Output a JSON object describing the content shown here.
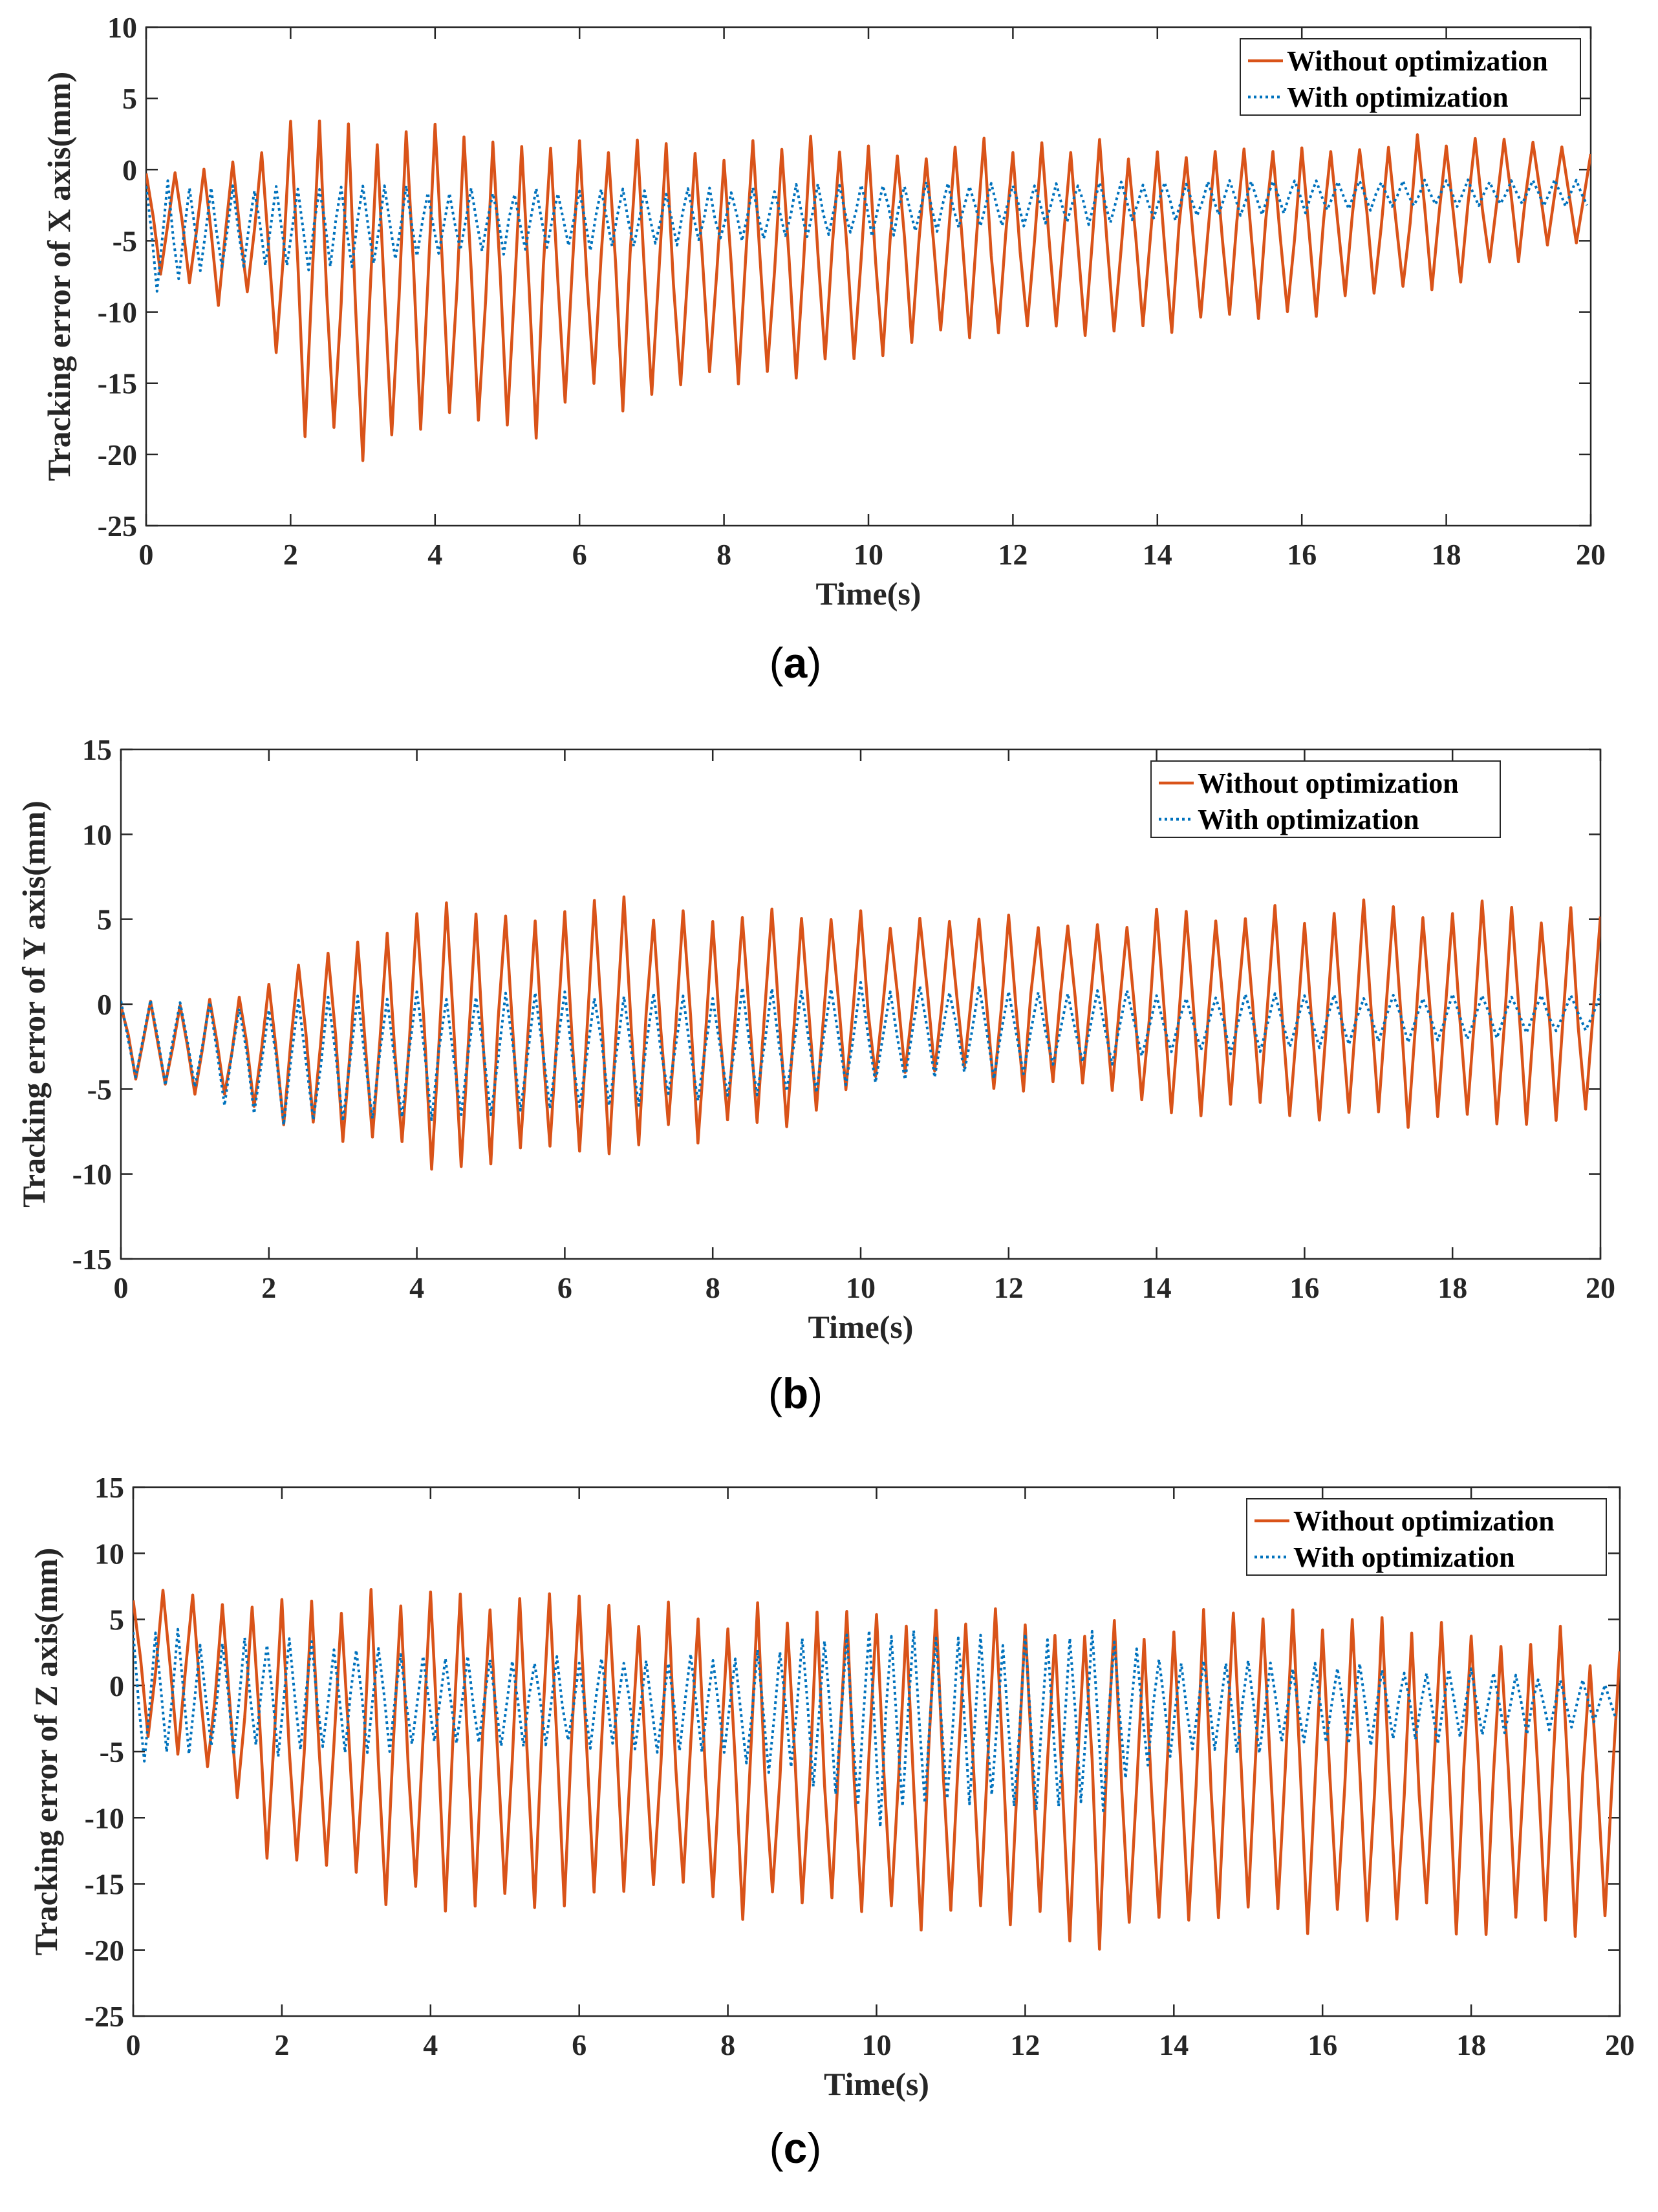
{
  "colors": {
    "without": "#D95319",
    "with": "#0072BD",
    "axis": "#262626"
  },
  "chart_data": [
    {
      "type": "line",
      "caption_letter": "a",
      "ylabel": "Tracking error of X axis(mm)",
      "xlabel": "Time(s)",
      "xlim": [
        0,
        20
      ],
      "ylim": [
        -25,
        10
      ],
      "xticks": [
        0,
        2,
        4,
        6,
        8,
        10,
        12,
        14,
        16,
        18,
        20
      ],
      "yticks": [
        10,
        5,
        0,
        -5,
        -10,
        -15,
        -20,
        -25
      ],
      "legend": {
        "position": "top-right",
        "entries": [
          "Without optimization",
          "With optimization"
        ]
      },
      "grid": false,
      "series": [
        {
          "name": "Without optimization",
          "style": "solid",
          "period": 0.4,
          "sample_dt": 0.1,
          "envelope": {
            "t": [
              0,
              1,
              1.5,
              2,
              3,
              4,
              5,
              6,
              7,
              8,
              9,
              10,
              11,
              12,
              13,
              14,
              15,
              16,
              17,
              18,
              19,
              20
            ],
            "max": [
              0,
              0,
              1,
              2.5,
              2,
              2.5,
              2,
              2,
              2,
              1.5,
              1.5,
              1.5,
              1.5,
              1.5,
              1.5,
              1.5,
              1.5,
              1.5,
              2,
              2,
              2,
              1
            ],
            "min": [
              -7,
              -9,
              -9,
              -17,
              -20,
              -17,
              -19,
              -16,
              -16,
              -15,
              -14,
              -13,
              -12,
              -12,
              -11,
              -11,
              -10,
              -10,
              -9,
              -8,
              -6,
              -5
            ]
          }
        },
        {
          "name": "With optimization",
          "style": "dotted",
          "period": 0.3,
          "sample_dt": 0.075,
          "envelope": {
            "t": [
              0,
              1,
              2,
              4,
              6,
              8,
              10,
              12,
              14,
              16,
              18,
              20
            ],
            "max": [
              -1,
              -1.5,
              -1,
              -1.5,
              -1.5,
              -1.5,
              -1,
              -1,
              -1,
              -0.8,
              -0.8,
              -0.8
            ],
            "min": [
              -8.5,
              -7,
              -7,
              -6,
              -5.5,
              -5,
              -4.5,
              -4,
              -3.5,
              -3,
              -2.5,
              -2.5
            ]
          }
        }
      ]
    },
    {
      "type": "line",
      "caption_letter": "b",
      "ylabel": "Tracking error of Y axis(mm)",
      "xlabel": "Time(s)",
      "xlim": [
        0,
        20
      ],
      "ylim": [
        -15,
        15
      ],
      "xticks": [
        0,
        2,
        4,
        6,
        8,
        10,
        12,
        14,
        16,
        18,
        20
      ],
      "yticks": [
        15,
        10,
        5,
        0,
        -5,
        -10,
        -15
      ],
      "legend": {
        "position": "top-right",
        "entries": [
          "Without optimization",
          "With optimization"
        ]
      },
      "grid": false,
      "series": [
        {
          "name": "Without optimization",
          "style": "solid",
          "period": 0.4,
          "sample_dt": 0.1,
          "envelope": {
            "t": [
              0,
              1,
              1.8,
              2.5,
              3,
              4,
              5,
              6,
              7,
              8,
              9,
              10,
              11,
              12,
              13,
              14,
              15,
              16,
              17,
              18,
              19,
              20
            ],
            "max": [
              0,
              0,
              1,
              3,
              4,
              5,
              6,
              5.5,
              5.5,
              5,
              5,
              5,
              5,
              5,
              5,
              5,
              5.5,
              5.5,
              5.5,
              5.5,
              5.5,
              5
            ],
            "min": [
              -4,
              -5,
              -6,
              -7,
              -8,
              -9,
              -9.5,
              -9,
              -8,
              -7.5,
              -6.5,
              -5,
              -4,
              -4.5,
              -5,
              -6,
              -6.5,
              -6.5,
              -6.5,
              -7,
              -7,
              -6.5
            ]
          }
        },
        {
          "name": "With optimization",
          "style": "dotted",
          "period": 0.4,
          "sample_dt": 0.1,
          "envelope": {
            "t": [
              0,
              1,
              2,
              4,
              6,
              8,
              10,
              12,
              14,
              16,
              18,
              20
            ],
            "max": [
              0,
              0,
              0,
              0.5,
              0.5,
              0.5,
              1,
              1,
              0.5,
              0.5,
              0.5,
              0.5
            ],
            "min": [
              -4,
              -5,
              -7,
              -6.5,
              -6,
              -5.5,
              -5,
              -4,
              -3,
              -2.5,
              -2,
              -1.5
            ]
          }
        }
      ]
    },
    {
      "type": "line",
      "caption_letter": "c",
      "ylabel": "Tracking error of Z axis(mm)",
      "xlabel": "Time(s)",
      "xlim": [
        0,
        20
      ],
      "ylim": [
        -25,
        15
      ],
      "xticks": [
        0,
        2,
        4,
        6,
        8,
        10,
        12,
        14,
        16,
        18,
        20
      ],
      "yticks": [
        15,
        10,
        5,
        0,
        -5,
        -10,
        -15,
        -20,
        -25
      ],
      "legend": {
        "position": "top-right",
        "entries": [
          "Without optimization",
          "With optimization"
        ]
      },
      "grid": false,
      "series": [
        {
          "name": "Without optimization",
          "style": "solid",
          "period": 0.4,
          "sample_dt": 0.1,
          "envelope": {
            "t": [
              0,
              1,
              1.5,
              2,
              3,
              4,
              5,
              6,
              7,
              8,
              9,
              10,
              11,
              12,
              13,
              14,
              15,
              16,
              17,
              18,
              19,
              20
            ],
            "max": [
              7,
              6,
              5,
              6,
              6,
              6,
              6,
              6,
              5.5,
              5,
              5,
              5,
              5,
              5,
              5,
              4.5,
              4.5,
              4.5,
              4,
              4,
              4,
              2
            ],
            "min": [
              -3,
              -6,
              -9,
              -14,
              -15,
              -16,
              -16,
              -15.5,
              -15.5,
              -16.5,
              -17,
              -17.5,
              -17.5,
              -17.5,
              -18.5,
              -18.5,
              -18,
              -18,
              -18,
              -17.5,
              -18.5,
              -18
            ]
          }
        },
        {
          "name": "With optimization",
          "style": "dotted",
          "period": 0.3,
          "sample_dt": 0.075,
          "envelope": {
            "t": [
              0,
              1,
              2,
              4,
              6,
              8,
              9,
              10,
              11,
              12,
              13,
              14,
              16,
              18,
              20
            ],
            "max": [
              4,
              3.5,
              3.5,
              2,
              2,
              2,
              3,
              4.5,
              4,
              3.5,
              3.5,
              2,
              1.5,
              1,
              0
            ],
            "min": [
              -6,
              -5,
              -5,
              -4.5,
              -4.5,
              -5,
              -7,
              -10,
              -9,
              -9,
              -9,
              -5,
              -4.5,
              -4,
              -2.5
            ]
          }
        }
      ]
    }
  ]
}
